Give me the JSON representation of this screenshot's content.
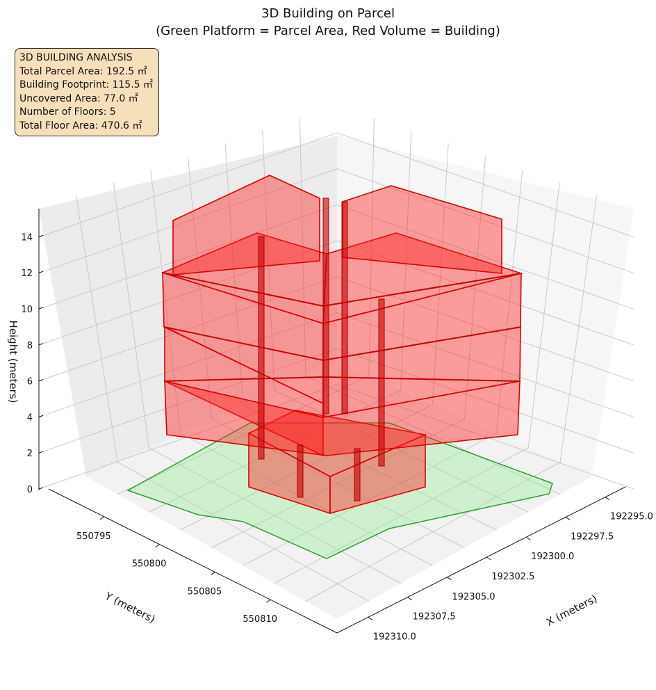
{
  "chart_data": {
    "type": "3d-polygon",
    "title": "3D Building on Parcel",
    "subtitle": "(Green Platform = Parcel Area, Red Volume = Building)",
    "xlabel": "X (meters)",
    "ylabel": "Y (meters)",
    "zlabel": "Height (meters)",
    "x_ticks": [
      "192295.0",
      "192297.5",
      "192300.0",
      "192302.5",
      "192305.0",
      "192307.5",
      "192310.0"
    ],
    "y_ticks": [
      "550795",
      "550800",
      "550805",
      "550810"
    ],
    "z_ticks": [
      "0",
      "2",
      "4",
      "6",
      "8",
      "10",
      "12",
      "14"
    ],
    "zlim": [
      0,
      15
    ],
    "grid": true,
    "series": [
      {
        "name": "Parcel Area",
        "color": "#2ca02c",
        "fill": "#90ee90"
      },
      {
        "name": "Building",
        "color": "#dd0000",
        "fill": "#ff0000",
        "floors": 5
      }
    ]
  },
  "info_box": {
    "lines": [
      "3D BUILDING ANALYSIS",
      "Total Parcel Area: 192.5 ㎡",
      "Building Footprint: 115.5 ㎡",
      "Uncovered Area: 77.0 ㎡",
      "Number of Floors: 5",
      "Total Floor Area: 470.6 ㎡"
    ]
  }
}
